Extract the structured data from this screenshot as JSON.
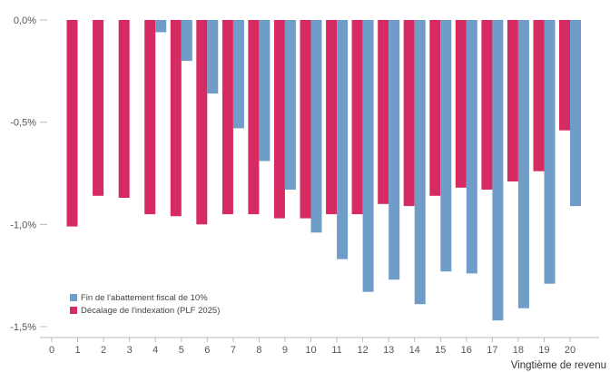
{
  "chart_data": {
    "type": "bar",
    "xlabel": "Vingtième de revenu",
    "ylabel": "",
    "ylim": [
      -1.5,
      0
    ],
    "y_ticks": [
      0,
      -0.5,
      -1.0,
      -1.5
    ],
    "y_tick_labels": [
      "0,0%",
      "-0,5%",
      "-1,0%",
      "-1,5%"
    ],
    "x_ticks": [
      0,
      1,
      2,
      3,
      4,
      5,
      6,
      7,
      8,
      9,
      10,
      11,
      12,
      13,
      14,
      15,
      16,
      17,
      18,
      19,
      20
    ],
    "categories": [
      1,
      2,
      3,
      4,
      5,
      6,
      7,
      8,
      9,
      10,
      11,
      12,
      13,
      14,
      15,
      16,
      17,
      18,
      19,
      20
    ],
    "series": [
      {
        "name": "Fin de l'abattement fiscal de 10%",
        "color": "#6f9dc8",
        "values": [
          0,
          0,
          0,
          -0.06,
          -0.2,
          -0.36,
          -0.53,
          -0.69,
          -0.83,
          -1.04,
          -1.17,
          -1.33,
          -1.27,
          -1.39,
          -1.23,
          -1.24,
          -1.47,
          -1.41,
          -1.29,
          -0.91
        ]
      },
      {
        "name": "Décalage de l'indexation (PLF 2025)",
        "color": "#d62a62",
        "values": [
          -1.01,
          -0.86,
          -0.87,
          -0.95,
          -0.96,
          -1.0,
          -0.95,
          -0.95,
          -0.97,
          -0.97,
          -0.95,
          -0.95,
          -0.9,
          -0.91,
          -0.86,
          -0.82,
          -0.83,
          -0.79,
          -0.74,
          -0.54
        ]
      }
    ],
    "legend_position": "bottom-left",
    "grid": false
  }
}
